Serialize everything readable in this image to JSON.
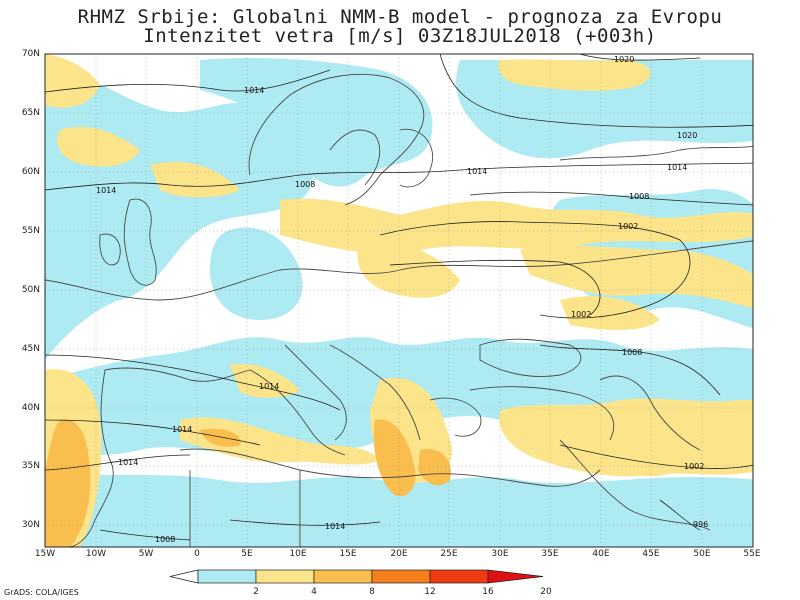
{
  "title_line1": "RHMZ Srbije: Globalni NMM-B model - prognoza za Evropu",
  "title_line2": "Intenzitet vetra [m/s] 03Z18JUL2018 (+003h)",
  "lat_labels": [
    "70N",
    "65N",
    "60N",
    "55N",
    "50N",
    "45N",
    "40N",
    "35N",
    "30N"
  ],
  "lon_labels": [
    "15W",
    "10W",
    "5W",
    "0",
    "5E",
    "10E",
    "15E",
    "20E",
    "25E",
    "30E",
    "35E",
    "40E",
    "45E",
    "50E",
    "55E"
  ],
  "isobar_labels": [
    "1020",
    "1014",
    "1020",
    "1014",
    "1014",
    "1008",
    "1002",
    "1014",
    "1008",
    "1014",
    "1002",
    "1014",
    "1008",
    "1014",
    "1014",
    "1002",
    "996",
    "1008",
    "1014"
  ],
  "colorbar": {
    "ticks": [
      "2",
      "4",
      "8",
      "12",
      "16",
      "20"
    ],
    "colors": [
      "#ffffff",
      "#aeeaf2",
      "#fbe48a",
      "#f9be4d",
      "#f57f1c",
      "#ef3b12",
      "#e01010"
    ]
  },
  "credit": "GrADS: COLA/IGES",
  "colors": {
    "land": "#ffffff",
    "coast": "#4a4a4a",
    "isobar": "#222222",
    "grid": "#888888"
  }
}
